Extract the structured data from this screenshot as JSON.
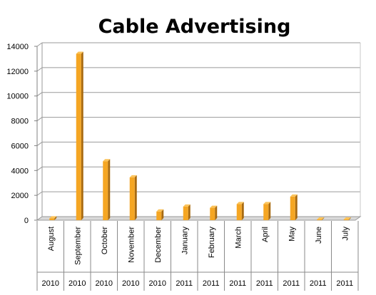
{
  "chart_data": {
    "type": "bar",
    "title": "Cable Advertising",
    "months": [
      "August",
      "September",
      "October",
      "November",
      "December",
      "January",
      "February",
      "March",
      "April",
      "May",
      "June",
      "July"
    ],
    "years": [
      "2010",
      "2010",
      "2010",
      "2010",
      "2010",
      "2011",
      "2011",
      "2011",
      "2011",
      "2011",
      "2011",
      "2011"
    ],
    "values": [
      150,
      13400,
      4750,
      3450,
      700,
      1100,
      1000,
      1300,
      1300,
      1900,
      60,
      60
    ],
    "ylim": [
      0,
      14000
    ],
    "yticks": [
      "0",
      "2000",
      "4000",
      "6000",
      "8000",
      "10000",
      "12000",
      "14000"
    ],
    "grid": true,
    "bar_color": "#f5a623",
    "bar_side_color": "#a86a10",
    "bar_top_color": "#fbc35a"
  }
}
